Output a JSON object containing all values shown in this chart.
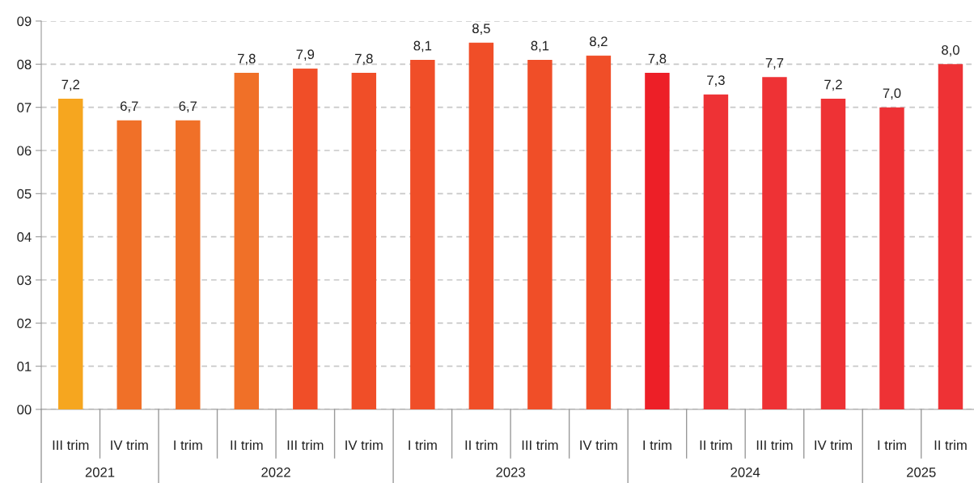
{
  "chart_data": {
    "type": "bar",
    "categories": [
      "III trim",
      "IV trim",
      "I trim",
      "II trim",
      "III trim",
      "IV trim",
      "I trim",
      "II trim",
      "III trim",
      "IV trim",
      "I trim",
      "II trim",
      "III trim",
      "IV trim",
      "I trim",
      "II trim"
    ],
    "values": [
      7.2,
      6.7,
      6.7,
      7.8,
      7.9,
      7.8,
      8.1,
      8.5,
      8.1,
      8.2,
      7.8,
      7.3,
      7.7,
      7.2,
      7.0,
      8.0
    ],
    "value_labels": [
      "7,2",
      "6,7",
      "6,7",
      "7,8",
      "7,9",
      "7,8",
      "8,1",
      "8,5",
      "8,1",
      "8,2",
      "7,8",
      "7,3",
      "7,7",
      "7,2",
      "7,0",
      "8,0"
    ],
    "colors": [
      "#f6a61f",
      "#f07028",
      "#f07028",
      "#f07028",
      "#f04e28",
      "#f04e28",
      "#f04e28",
      "#f04e28",
      "#f04e28",
      "#f04e28",
      "#ed1f27",
      "#ee3235",
      "#ee3235",
      "#ee3235",
      "#ee3235",
      "#ee3235"
    ],
    "ylim": [
      0,
      9
    ],
    "yticks": [
      {
        "value": 0,
        "label": "00"
      },
      {
        "value": 1,
        "label": "01"
      },
      {
        "value": 2,
        "label": "02"
      },
      {
        "value": 3,
        "label": "03"
      },
      {
        "value": 4,
        "label": "04"
      },
      {
        "value": 5,
        "label": "05"
      },
      {
        "value": 6,
        "label": "06"
      },
      {
        "value": 7,
        "label": "07"
      },
      {
        "value": 8,
        "label": "08"
      },
      {
        "value": 9,
        "label": "09"
      }
    ],
    "grid": "y",
    "line_style": "dashed",
    "annotations": [
      "2021",
      "2022",
      "2023",
      "2024",
      "2025"
    ]
  }
}
